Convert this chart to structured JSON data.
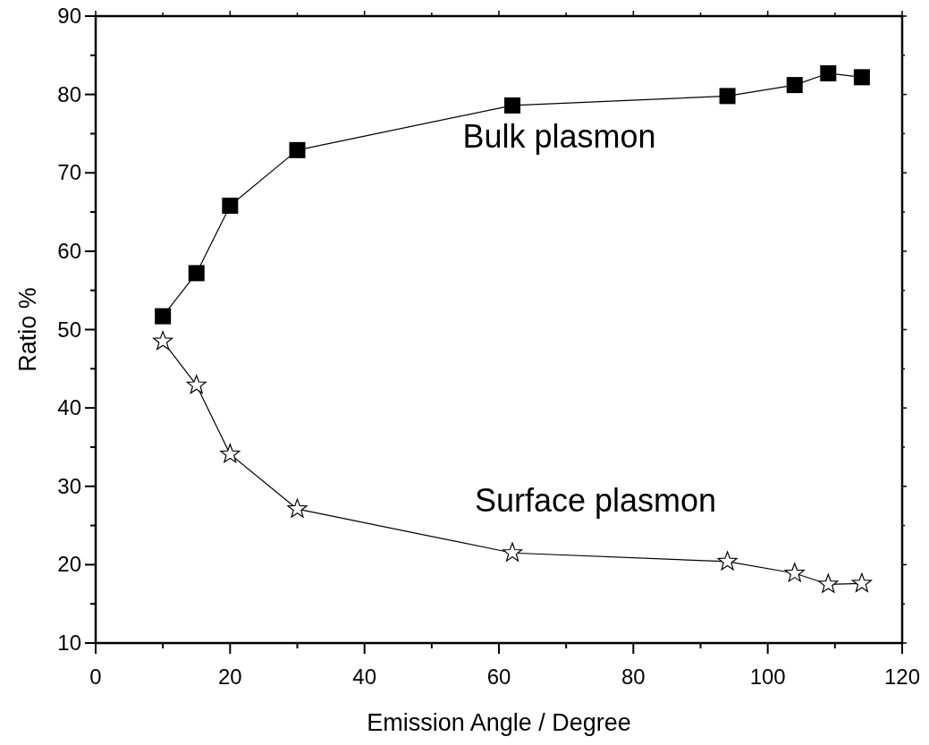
{
  "chart_data": {
    "type": "line",
    "xlabel": "Emission Angle / Degree",
    "ylabel": "Ratio %",
    "x": [
      10,
      15,
      20,
      30,
      62,
      94,
      104,
      109,
      114
    ],
    "series": [
      {
        "name": "Bulk plasmon",
        "color": "#000000",
        "marker": "square",
        "values": [
          51.7,
          57.2,
          65.8,
          72.9,
          78.6,
          79.8,
          81.2,
          82.7,
          82.2
        ]
      },
      {
        "name": "Surface plasmon",
        "color": "#000000",
        "marker": "star",
        "values": [
          48.5,
          42.9,
          34.1,
          27.1,
          21.5,
          20.4,
          18.9,
          17.5,
          17.6
        ]
      }
    ],
    "xlim": [
      0,
      120
    ],
    "ylim": [
      10,
      90
    ],
    "xticks": [
      0,
      {
        "value": 10,
        "label": null
      },
      20,
      {
        "value": 30,
        "label": null
      },
      40,
      {
        "value": 50,
        "label": null
      },
      60,
      {
        "value": 70,
        "label": null
      },
      80,
      {
        "value": 90,
        "label": null
      },
      100,
      {
        "value": 110,
        "label": null
      },
      120
    ],
    "yticks": [
      10,
      {
        "value": 15,
        "label": null
      },
      20,
      {
        "value": 25,
        "label": null
      },
      30,
      {
        "value": 35,
        "label": null
      },
      40,
      {
        "value": 45,
        "label": null
      },
      50,
      {
        "value": 55,
        "label": null
      },
      60,
      {
        "value": 65,
        "label": null
      },
      70,
      {
        "value": 75,
        "label": null
      },
      80,
      {
        "value": 85,
        "label": null
      },
      90
    ],
    "grid": false,
    "line_style": "solid"
  }
}
